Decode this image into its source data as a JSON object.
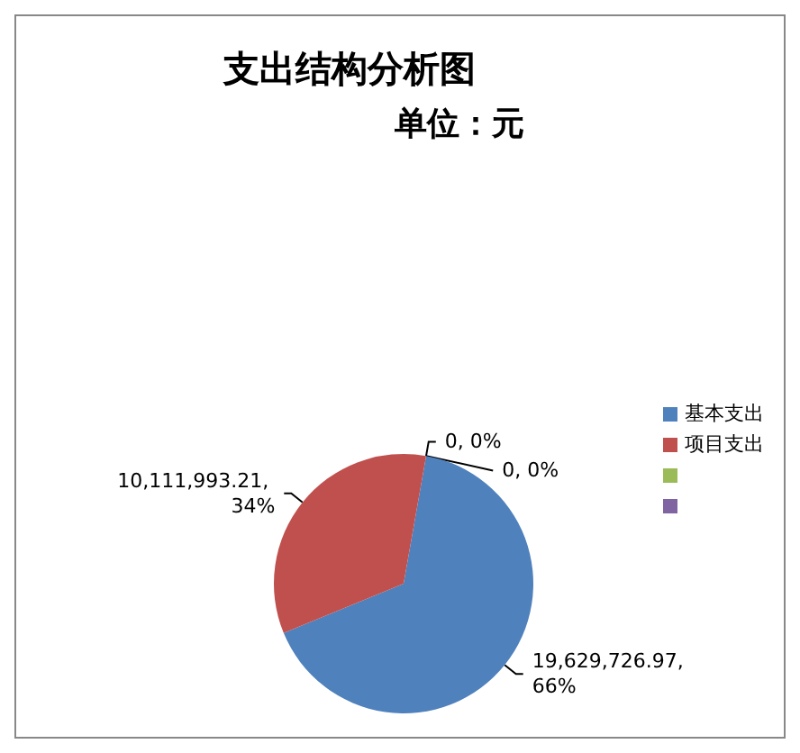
{
  "chart_data": {
    "type": "pie",
    "title": "支出结构分析图",
    "subtitle": "单位：元",
    "categories": [
      "基本支出",
      "项目支出",
      null,
      null
    ],
    "values": [
      19629726.97,
      10111993.21,
      0,
      0
    ],
    "colors": [
      "#4f81bd",
      "#c0504d",
      "#9bbb59",
      "#8064a2"
    ],
    "value_labels": [
      "19,629,726.97, 66%",
      "10,111,993.21, 34%",
      "0, 0%",
      "0, 0%"
    ],
    "legend": "right"
  }
}
